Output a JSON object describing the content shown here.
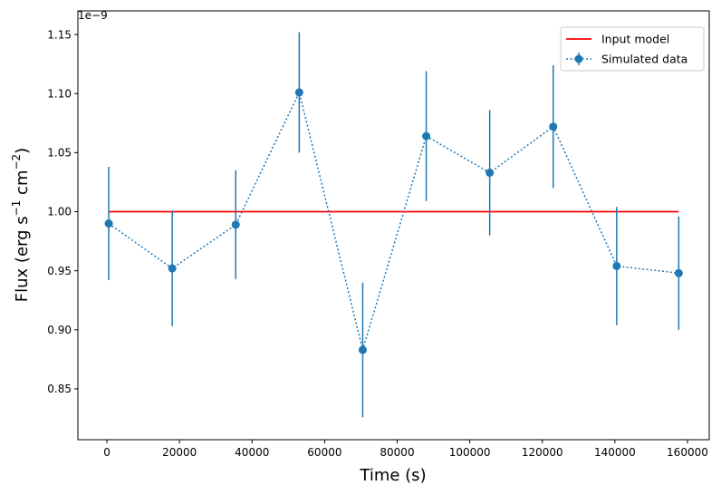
{
  "chart_data": {
    "type": "line",
    "title": "",
    "xlabel": "Time (s)",
    "ylabel": {
      "prefix": "Flux (erg s",
      "exp1": "−1",
      "mid": " cm",
      "exp2": "−2",
      "suffix": ")"
    },
    "offset_text": "1e−9",
    "xlim": [
      -8000,
      166000
    ],
    "ylim": [
      0.807,
      1.17
    ],
    "x_ticks": [
      0,
      20000,
      40000,
      60000,
      80000,
      100000,
      120000,
      140000,
      160000
    ],
    "x_tick_labels": [
      "0",
      "20000",
      "40000",
      "60000",
      "80000",
      "100000",
      "120000",
      "140000",
      "160000"
    ],
    "y_ticks": [
      0.85,
      0.9,
      0.95,
      1.0,
      1.05,
      1.1,
      1.15
    ],
    "y_tick_labels": [
      "0.85",
      "0.90",
      "0.95",
      "1.00",
      "1.05",
      "1.10",
      "1.15"
    ],
    "legend_position": "top-right",
    "series": [
      {
        "name": "Input model",
        "kind": "line",
        "color": "#ff0000",
        "x": [
          500,
          157600
        ],
        "y": [
          1.0,
          1.0
        ]
      },
      {
        "name": "Simulated data",
        "kind": "errorbar",
        "color": "#1f77b4",
        "linestyle": "dotted",
        "x": [
          500,
          18000,
          35500,
          53000,
          70500,
          88000,
          105500,
          123000,
          140500,
          157600
        ],
        "y": [
          0.99,
          0.952,
          0.989,
          1.101,
          0.883,
          1.064,
          1.033,
          1.072,
          0.954,
          0.948
        ],
        "yerr": [
          0.048,
          0.049,
          0.046,
          0.051,
          0.057,
          0.055,
          0.053,
          0.052,
          0.05,
          0.048
        ]
      }
    ]
  }
}
